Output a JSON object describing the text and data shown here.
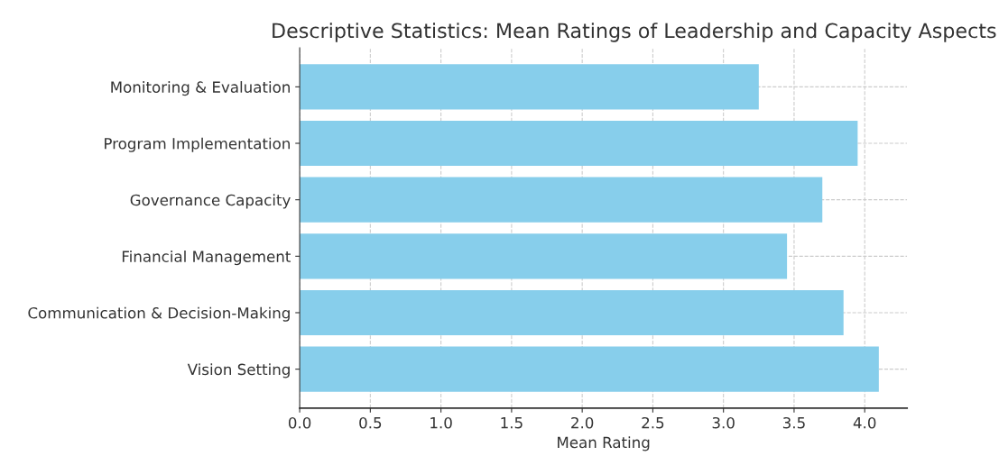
{
  "chart_data": {
    "type": "bar",
    "orientation": "horizontal",
    "title": "Descriptive Statistics: Mean Ratings of Leadership and Capacity Aspects",
    "xlabel": "Mean Rating",
    "categories": [
      "Monitoring & Evaluation",
      "Program Implementation",
      "Governance Capacity",
      "Financial Management",
      "Communication & Decision-Making",
      "Vision Setting"
    ],
    "values": [
      3.25,
      3.95,
      3.7,
      3.45,
      3.85,
      4.1
    ],
    "color": "#87ceeb",
    "xlim": [
      0,
      4.3
    ],
    "xticks": [
      {
        "value": 0,
        "label": "0.0"
      },
      0.5,
      {
        "value": 1,
        "label": "1.0"
      },
      1.5,
      {
        "value": 2,
        "label": "2.0"
      },
      2.5,
      {
        "value": 3,
        "label": "3.0"
      },
      3.5,
      {
        "value": 4,
        "label": "4.0"
      }
    ],
    "grid": true
  }
}
